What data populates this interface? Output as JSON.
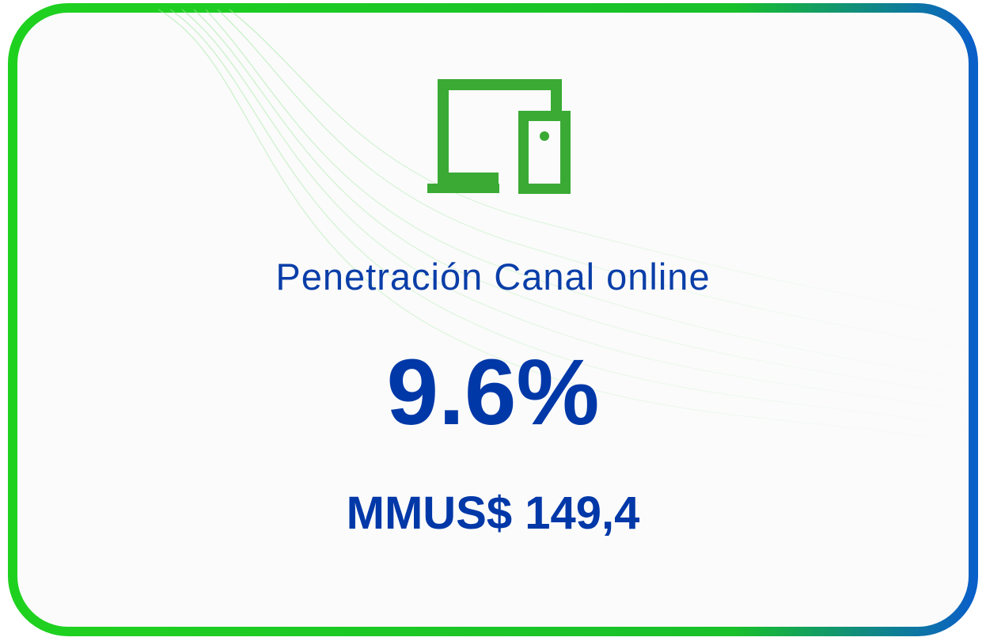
{
  "card": {
    "label": "Penetración Canal online",
    "value": "9.6%",
    "amount": "MMUS$ 149,4"
  }
}
